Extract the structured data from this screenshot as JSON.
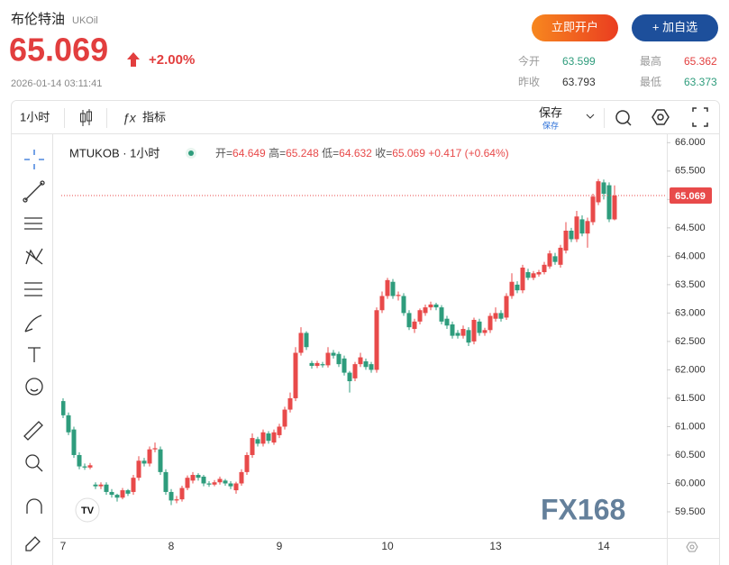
{
  "header": {
    "name": "布伦特油",
    "code": "UKOil",
    "price": "65.069",
    "change": "+2.00%",
    "time": "2026-01-14 03:11:41",
    "open_account": "立即开户",
    "add_watch": "+ 加自选",
    "stats": [
      {
        "label": "今开",
        "value": "63.599"
      },
      {
        "label": "最高",
        "value": "65.362"
      },
      {
        "label": "昨收",
        "value": "63.793"
      },
      {
        "label": "最低",
        "value": "63.373"
      }
    ]
  },
  "toolbar": {
    "interval": "1小时",
    "indicators": "指标",
    "save": "保存",
    "save_sub": "保存"
  },
  "legend": {
    "symbol": "MTUKOB · 1小时",
    "open": "开=",
    "high": "高=",
    "low": "低=",
    "close": "收=",
    "change": "+0.417 (+0.64%)"
  },
  "watermark": "FX168",
  "chart_data": {
    "type": "candlestick",
    "up_color": "#e84a4a",
    "down_color": "#2e9c7c",
    "ylim": [
      59.04,
      66.1
    ],
    "yticks": [
      {
        "value": 59.5,
        "label": "59.500"
      },
      {
        "value": 60,
        "label": "60.000"
      },
      {
        "value": 60.5,
        "label": "60.500"
      },
      {
        "value": 61,
        "label": "61.000"
      },
      {
        "value": 61.5,
        "label": "61.500"
      },
      {
        "value": 62,
        "label": "62.000"
      },
      {
        "value": 62.5,
        "label": "62.500"
      },
      {
        "value": 63,
        "label": "63.000"
      },
      {
        "value": 63.5,
        "label": "63.500"
      },
      {
        "value": 64,
        "label": "64.000"
      },
      {
        "value": 64.5,
        "label": "64.500"
      },
      {
        "value": 65,
        "label": "65.000"
      },
      {
        "value": 65.5,
        "label": "65.500"
      },
      {
        "value": 66,
        "label": "66.000"
      }
    ],
    "last_price": {
      "value": 65.069,
      "label": "65.069"
    },
    "categories": [
      "7",
      null,
      null,
      null,
      null,
      null,
      null,
      null,
      null,
      null,
      null,
      null,
      null,
      null,
      null,
      null,
      null,
      null,
      null,
      null,
      "8",
      null,
      null,
      null,
      null,
      null,
      null,
      null,
      null,
      null,
      null,
      null,
      null,
      null,
      null,
      null,
      null,
      null,
      null,
      null,
      "9",
      null,
      null,
      null,
      null,
      null,
      null,
      null,
      null,
      null,
      null,
      null,
      null,
      null,
      null,
      null,
      null,
      null,
      null,
      null,
      "10",
      null,
      null,
      null,
      null,
      null,
      null,
      null,
      null,
      null,
      null,
      null,
      null,
      null,
      null,
      null,
      null,
      null,
      null,
      null,
      "13",
      null,
      null,
      null,
      null,
      null,
      null,
      null,
      null,
      null,
      null,
      null,
      null,
      null,
      null,
      null,
      null,
      null,
      null,
      null,
      "14",
      null,
      null
    ],
    "open": [
      61.45,
      61.2,
      60.95,
      60.5,
      60.3,
      60.28,
      59.98,
      59.95,
      59.98,
      59.85,
      59.8,
      59.75,
      59.88,
      59.85,
      60.1,
      60.4,
      60.35,
      60.6,
      60.6,
      60.2,
      59.85,
      59.7,
      59.72,
      59.92,
      60.05,
      60.15,
      60.12,
      60.0,
      59.98,
      60.02,
      60.05,
      60.0,
      59.88,
      60.0,
      60.2,
      60.5,
      60.78,
      60.7,
      60.88,
      60.72,
      60.85,
      61.0,
      61.3,
      61.5,
      62.3,
      62.65,
      62.12,
      62.07,
      62.1,
      62.08,
      62.3,
      62.28,
      62.2,
      61.95,
      61.85,
      62.1,
      62.15,
      62.1,
      62.0,
      63.05,
      63.3,
      63.55,
      63.3,
      63.3,
      63.0,
      62.72,
      62.85,
      63.0,
      63.1,
      63.15,
      63.1,
      62.9,
      62.8,
      62.65,
      62.6,
      62.7,
      62.5,
      62.85,
      62.65,
      62.7,
      62.9,
      63.0,
      62.92,
      63.3,
      63.5,
      63.4,
      63.72,
      63.62,
      63.68,
      63.72,
      63.82,
      64.0,
      63.85,
      64.1,
      64.45,
      64.3,
      64.65,
      64.4,
      64.6,
      64.95,
      65.3,
      65.25,
      64.649
    ],
    "high": [
      61.5,
      61.25,
      61.0,
      60.55,
      60.35,
      60.36,
      60.02,
      60.02,
      60.02,
      59.9,
      59.82,
      59.92,
      59.9,
      60.15,
      60.48,
      60.45,
      60.65,
      60.72,
      60.65,
      60.25,
      59.9,
      59.78,
      59.96,
      60.14,
      60.2,
      60.18,
      60.15,
      60.04,
      60.06,
      60.12,
      60.08,
      60.04,
      60.03,
      60.25,
      60.55,
      60.88,
      60.82,
      60.95,
      60.92,
      60.95,
      61.05,
      61.35,
      61.6,
      62.4,
      62.75,
      62.68,
      62.16,
      62.16,
      62.14,
      62.4,
      62.35,
      62.32,
      62.25,
      61.98,
      62.14,
      62.3,
      62.2,
      62.14,
      63.1,
      63.38,
      63.62,
      63.6,
      63.38,
      63.35,
      63.05,
      62.9,
      63.08,
      63.15,
      63.2,
      63.18,
      63.14,
      62.95,
      62.85,
      62.7,
      62.78,
      62.75,
      62.92,
      62.9,
      62.74,
      63.0,
      63.1,
      63.05,
      63.35,
      63.7,
      63.56,
      63.85,
      63.78,
      63.74,
      63.76,
      63.9,
      64.1,
      64.06,
      64.2,
      64.6,
      64.5,
      64.8,
      64.72,
      64.68,
      65.1,
      65.36,
      65.35,
      65.3,
      65.248
    ],
    "low": [
      61.15,
      60.85,
      60.45,
      60.25,
      60.24,
      60.25,
      59.9,
      59.9,
      59.8,
      59.75,
      59.68,
      59.72,
      59.78,
      59.8,
      60.05,
      60.3,
      60.3,
      60.55,
      60.15,
      59.8,
      59.62,
      59.65,
      59.68,
      59.88,
      60.0,
      60.05,
      59.95,
      59.94,
      59.95,
      59.98,
      59.96,
      59.9,
      59.82,
      59.96,
      60.15,
      60.45,
      60.65,
      60.65,
      60.7,
      60.68,
      60.8,
      60.95,
      61.25,
      61.45,
      62.25,
      62.35,
      62.02,
      62.03,
      62.04,
      62.04,
      62.2,
      62.05,
      61.9,
      61.6,
      61.8,
      62.05,
      62.0,
      61.95,
      61.95,
      63.0,
      63.25,
      63.25,
      63.22,
      62.95,
      62.7,
      62.65,
      62.8,
      62.95,
      63.05,
      63.05,
      62.8,
      62.72,
      62.55,
      62.55,
      62.55,
      62.42,
      62.45,
      62.6,
      62.6,
      62.65,
      62.85,
      62.85,
      62.88,
      63.25,
      63.35,
      63.35,
      63.58,
      63.58,
      63.64,
      63.68,
      63.78,
      63.85,
      63.8,
      64.05,
      64.25,
      64.25,
      64.35,
      64.15,
      64.55,
      64.9,
      65.0,
      64.6,
      64.632
    ],
    "close": [
      61.2,
      60.9,
      60.5,
      60.3,
      60.28,
      60.32,
      59.95,
      59.98,
      59.85,
      59.8,
      59.75,
      59.88,
      59.82,
      60.1,
      60.4,
      60.35,
      60.6,
      60.62,
      60.2,
      59.85,
      59.7,
      59.72,
      59.92,
      60.1,
      60.15,
      60.1,
      60.0,
      59.98,
      60.02,
      60.08,
      60.0,
      59.95,
      60.0,
      60.2,
      60.5,
      60.8,
      60.7,
      60.9,
      60.75,
      60.9,
      61.0,
      61.3,
      61.5,
      62.3,
      62.65,
      62.4,
      62.07,
      62.12,
      62.08,
      62.3,
      62.25,
      62.1,
      61.95,
      61.8,
      62.1,
      62.22,
      62.05,
      62.0,
      63.05,
      63.3,
      63.58,
      63.3,
      63.32,
      63.0,
      62.75,
      62.85,
      63.05,
      63.1,
      63.15,
      63.1,
      62.85,
      62.78,
      62.6,
      62.6,
      62.72,
      62.48,
      62.88,
      62.65,
      62.7,
      62.95,
      63.0,
      62.9,
      63.3,
      63.55,
      63.4,
      63.8,
      63.62,
      63.7,
      63.72,
      63.85,
      64.05,
      63.9,
      64.15,
      64.45,
      64.3,
      64.7,
      64.4,
      64.62,
      65.05,
      65.32,
      65.1,
      64.65,
      65.069
    ]
  }
}
